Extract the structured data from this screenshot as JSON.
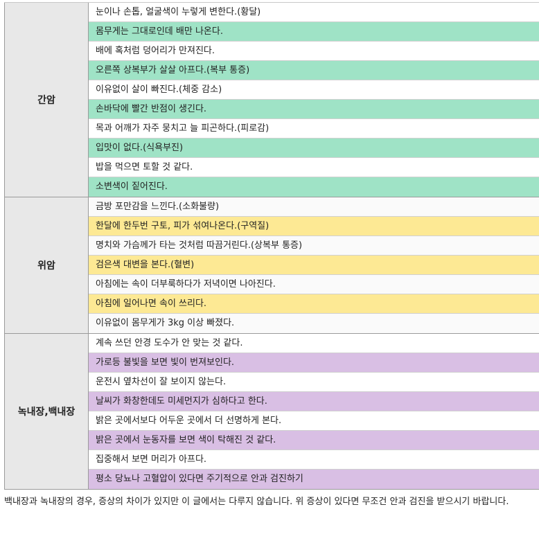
{
  "table": {
    "groups": [
      {
        "label": "간암",
        "rows": [
          "눈이나 손톱, 얼굴색이 누렇게 변한다.(황달)",
          "몸무게는 그대로인데 배만 나온다.",
          "배에 혹처럼 덩어리가 만져진다.",
          "오른쪽 상복부가 살살 아프다.(복부 통증)",
          "이유없이 살이 빠진다.(체중 감소)",
          "손바닥에 빨간 반점이 생긴다.",
          "목과 어깨가 자주 뭉치고 늘 피곤하다.(피로감)",
          "입맛이 없다.(식욕부진)",
          "밥을 먹으면 토할 것 같다.",
          "소변색이 짙어진다."
        ]
      },
      {
        "label": "위암",
        "rows": [
          "금방 포만감을 느낀다.(소화불량)",
          "한달에 한두번 구토, 피가 섞여나온다.(구역질)",
          "명치와 가슴께가 타는 것처럼 따끔거린다.(상복부 통증)",
          "검은색 대변을 본다.(혈변)",
          "아침에는 속이 더부룩하다가 저녁이면 나아진다.",
          "아침에 일어나면 속이 쓰리다.",
          "이유없이 몸무게가 3kg 이상 빠졌다."
        ]
      },
      {
        "label": "녹내장,백내장",
        "rows": [
          "계속 쓰던 안경 도수가 안 맞는 것 같다.",
          "가로등 불빛을 보면 빛이 번져보인다.",
          "운전시 옆차선이 잘 보이지 않는다.",
          "날씨가 화창한데도 미세먼지가 심하다고 한다.",
          "밝은 곳에서보다 어두운 곳에서 더 선명하게 본다.",
          "밝은 곳에서 눈동자를 보면 색이 탁해진 것 같다.",
          "집중해서 보면 머리가 아프다.",
          "평소 당뇨나 고혈압이 있다면 주기적으로 안과 검진하기"
        ]
      }
    ]
  },
  "note": "백내장과 녹내장의 경우, 증상의 차이가 있지만 이 글에서는 다루지 않습니다. 위 증상이 있다면 무조건 안과 검진을 받으시기 바랍니다."
}
